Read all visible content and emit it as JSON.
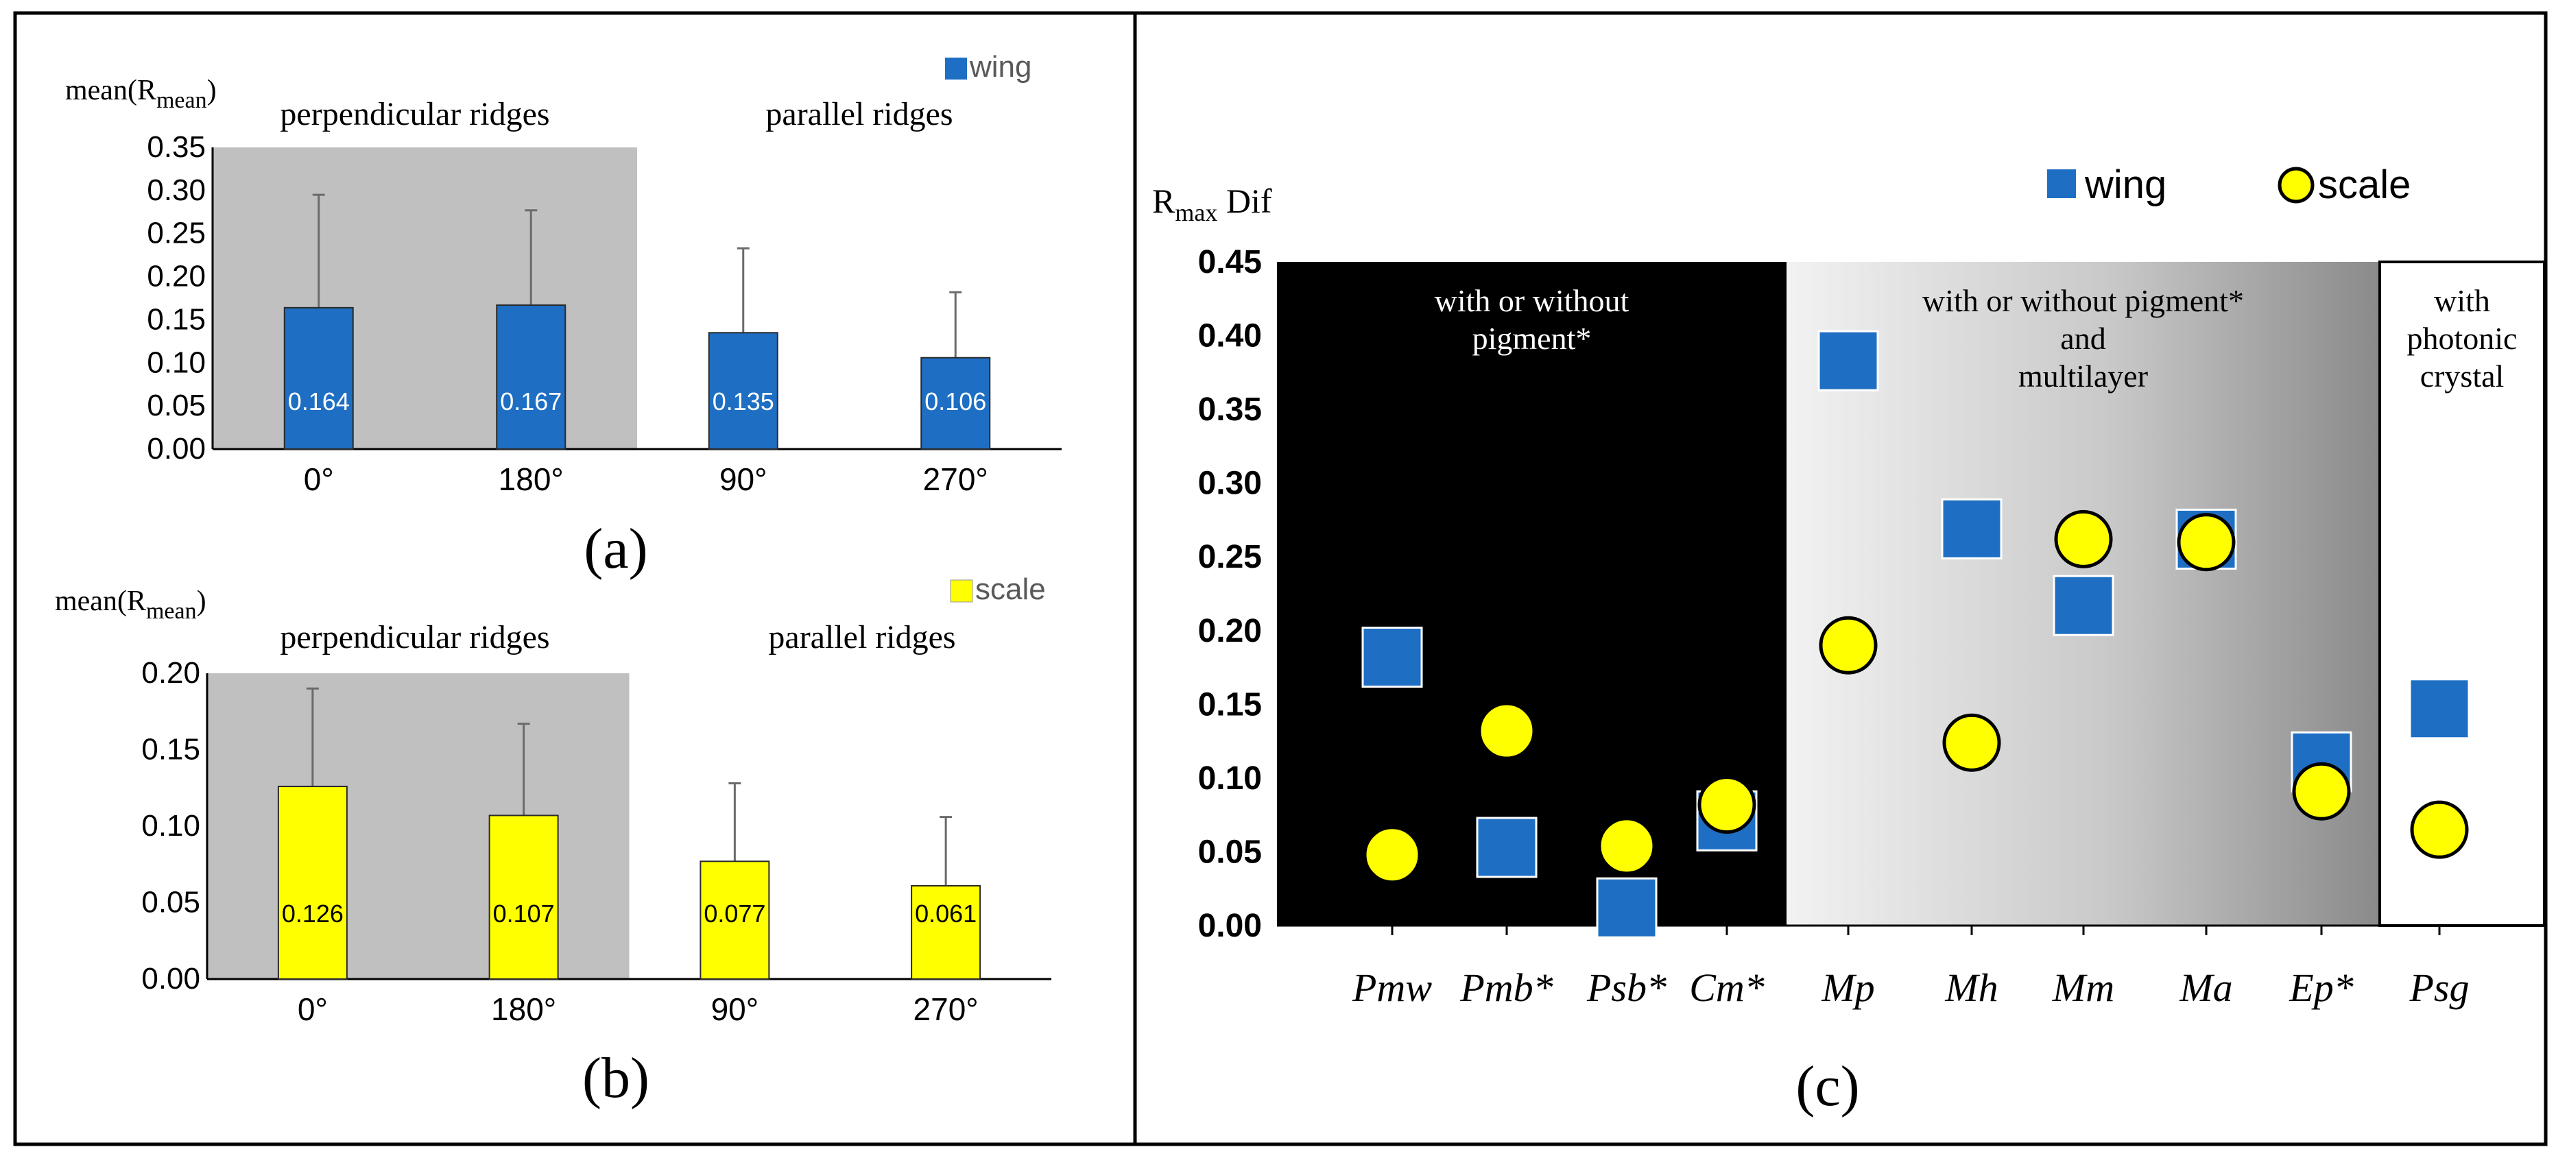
{
  "colors": {
    "wing": "#1e6fc4",
    "scale": "#ffff00",
    "shade": "#c0c0c0",
    "error_bar": "#6b6b6b",
    "axis": "#000000"
  },
  "icons": {
    "wing_marker": "blue-square-icon",
    "scale_marker": "yellow-circle-icon"
  },
  "chart_data": [
    {
      "panel": "a",
      "type": "bar",
      "panel_label": "(a)",
      "ylabel": "mean(Rmean)",
      "ylabel_main": "mean(R",
      "ylabel_sub": "mean",
      "ylabel_close": ")",
      "legend": "wing",
      "legend_position": "top-right",
      "region_labels": [
        "perpendicular ridges",
        "parallel ridges"
      ],
      "shaded_categories": 2,
      "categories": [
        "0°",
        "180°",
        "90°",
        "270°"
      ],
      "values": [
        0.164,
        0.167,
        0.135,
        0.106
      ],
      "value_labels": [
        "0.164",
        "0.167",
        "0.135",
        "0.106"
      ],
      "error_top": [
        0.295,
        0.277,
        0.233,
        0.182
      ],
      "ylim": [
        0,
        0.35
      ],
      "yticks": [
        0,
        0.05,
        0.1,
        0.15,
        0.2,
        0.25,
        0.3,
        0.35
      ],
      "ytick_labels": [
        "0.00",
        "0.05",
        "0.10",
        "0.15",
        "0.20",
        "0.25",
        "0.30",
        "0.35"
      ]
    },
    {
      "panel": "b",
      "type": "bar",
      "panel_label": "(b)",
      "ylabel": "mean(Rmean)",
      "ylabel_main": "mean(R",
      "ylabel_sub": "mean",
      "ylabel_close": ")",
      "legend": "scale",
      "legend_position": "top-right",
      "region_labels": [
        "perpendicular ridges",
        "parallel ridges"
      ],
      "shaded_categories": 2,
      "categories": [
        "0°",
        "180°",
        "90°",
        "270°"
      ],
      "values": [
        0.126,
        0.107,
        0.077,
        0.061
      ],
      "value_labels": [
        "0.126",
        "0.107",
        "0.077",
        "0.061"
      ],
      "error_top": [
        0.19,
        0.167,
        0.128,
        0.106
      ],
      "ylim": [
        0,
        0.2
      ],
      "yticks": [
        0,
        0.05,
        0.1,
        0.15,
        0.2
      ],
      "ytick_labels": [
        "0.00",
        "0.05",
        "0.10",
        "0.15",
        "0.20"
      ]
    },
    {
      "panel": "c",
      "type": "scatter",
      "panel_label": "(c)",
      "ylabel": "Rmax Dif",
      "ylabel_main": "R",
      "ylabel_sub": "max",
      "ylabel_rest": " Dif",
      "legend_position": "top-right",
      "categories": [
        "Pmw",
        "Pmb*",
        "Psb*",
        "Cm*",
        "Mp",
        "Mh",
        "Mm",
        "Ma",
        "Ep*",
        "Psg"
      ],
      "series": [
        {
          "name": "wing",
          "marker": "square",
          "values": [
            0.182,
            0.053,
            0.012,
            0.071,
            0.383,
            0.269,
            0.217,
            0.262,
            0.111,
            0.147
          ]
        },
        {
          "name": "scale",
          "marker": "circle",
          "values": [
            0.048,
            0.132,
            0.054,
            0.082,
            0.19,
            0.124,
            0.262,
            0.26,
            0.091,
            0.065
          ]
        }
      ],
      "ylim": [
        0,
        0.45
      ],
      "yticks": [
        0,
        0.05,
        0.1,
        0.15,
        0.2,
        0.25,
        0.3,
        0.35,
        0.4,
        0.45
      ],
      "ytick_labels": [
        "0.00",
        "0.05",
        "0.10",
        "0.15",
        "0.20",
        "0.25",
        "0.30",
        "0.35",
        "0.40",
        "0.45"
      ],
      "regions": [
        {
          "lines": [
            "with or without",
            "pigment*"
          ],
          "from": 0,
          "to": 3,
          "fill": "black"
        },
        {
          "lines": [
            "with or without pigment*",
            "and",
            "multilayer"
          ],
          "from": 4,
          "to": 8,
          "fill": "gradient"
        },
        {
          "lines": [
            "with",
            "photonic",
            "crystal"
          ],
          "from": 9,
          "to": 9,
          "fill": "white"
        }
      ]
    }
  ]
}
